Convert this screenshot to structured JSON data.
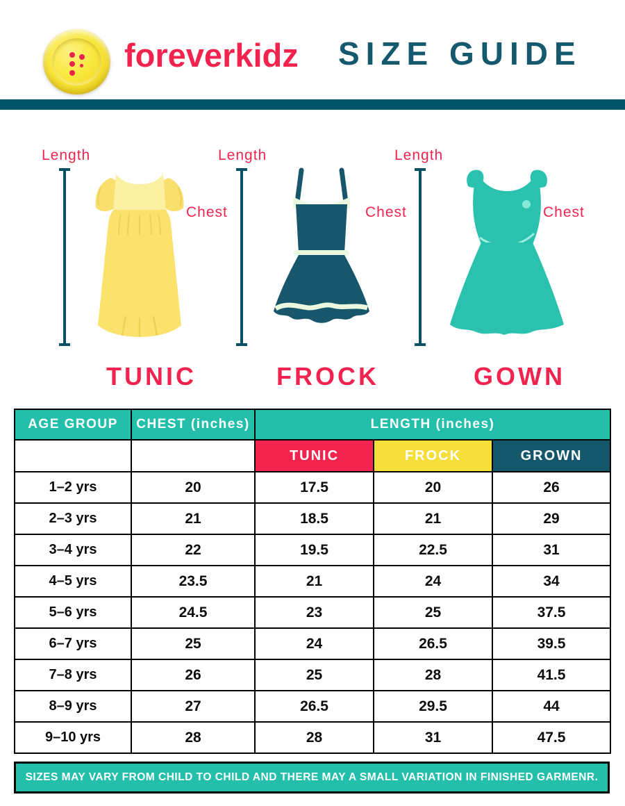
{
  "header": {
    "brand": "foreverkidz",
    "title": "SIZE GUIDE",
    "logo_icon": "yellow-button-icon"
  },
  "colors": {
    "teal": "#24bfab",
    "crimson": "#f0244f",
    "yellow": "#f5de39",
    "dark_teal": "#14576b",
    "bar_teal": "#03566a",
    "dress_yellow": "#fbe26c",
    "dress_dark_teal": "#17566b",
    "dress_turquoise": "#2ac2ae"
  },
  "dresses": [
    {
      "name": "TUNIC",
      "length_label": "Length",
      "chest_label": "Chest"
    },
    {
      "name": "FROCK",
      "length_label": "Length",
      "chest_label": "Chest"
    },
    {
      "name": "GOWN",
      "length_label": "Length",
      "chest_label": "Chest"
    }
  ],
  "table": {
    "headers": {
      "age": "AGE GROUP",
      "chest": "CHEST (inches)",
      "length": "LENGTH (inches)"
    },
    "sub_headers": [
      "TUNIC",
      "FROCK",
      "GROWN"
    ],
    "rows": [
      {
        "age": "1–2 yrs",
        "chest": "20",
        "tunic": "17.5",
        "frock": "20",
        "gown": "26"
      },
      {
        "age": "2–3 yrs",
        "chest": "21",
        "tunic": "18.5",
        "frock": "21",
        "gown": "29"
      },
      {
        "age": "3–4 yrs",
        "chest": "22",
        "tunic": "19.5",
        "frock": "22.5",
        "gown": "31"
      },
      {
        "age": "4–5 yrs",
        "chest": "23.5",
        "tunic": "21",
        "frock": "24",
        "gown": "34"
      },
      {
        "age": "5–6 yrs",
        "chest": "24.5",
        "tunic": "23",
        "frock": "25",
        "gown": "37.5"
      },
      {
        "age": "6–7 yrs",
        "chest": "25",
        "tunic": "24",
        "frock": "26.5",
        "gown": "39.5"
      },
      {
        "age": "7–8 yrs",
        "chest": "26",
        "tunic": "25",
        "frock": "28",
        "gown": "41.5"
      },
      {
        "age": "8–9 yrs",
        "chest": "27",
        "tunic": "26.5",
        "frock": "29.5",
        "gown": "44"
      },
      {
        "age": "9–10 yrs",
        "chest": "28",
        "tunic": "28",
        "frock": "31",
        "gown": "47.5"
      }
    ]
  },
  "footer": {
    "note": "SIZES MAY VARY FROM CHILD TO CHILD AND THERE MAY A SMALL VARIATION IN FINISHED GARMENR."
  },
  "chart_data": {
    "type": "table",
    "title": "SIZE GUIDE",
    "columns": [
      "AGE GROUP",
      "CHEST (inches)",
      "LENGTH TUNIC (inches)",
      "LENGTH FROCK (inches)",
      "LENGTH GROWN (inches)"
    ],
    "rows": [
      [
        "1–2 yrs",
        20,
        17.5,
        20,
        26
      ],
      [
        "2–3 yrs",
        21,
        18.5,
        21,
        29
      ],
      [
        "3–4 yrs",
        22,
        19.5,
        22.5,
        31
      ],
      [
        "4–5 yrs",
        23.5,
        21,
        24,
        34
      ],
      [
        "5–6 yrs",
        24.5,
        23,
        25,
        37.5
      ],
      [
        "6–7 yrs",
        25,
        24,
        26.5,
        39.5
      ],
      [
        "7–8 yrs",
        26,
        25,
        28,
        41.5
      ],
      [
        "8–9 yrs",
        27,
        26.5,
        29.5,
        44
      ],
      [
        "9–10 yrs",
        28,
        28,
        31,
        47.5
      ]
    ]
  }
}
